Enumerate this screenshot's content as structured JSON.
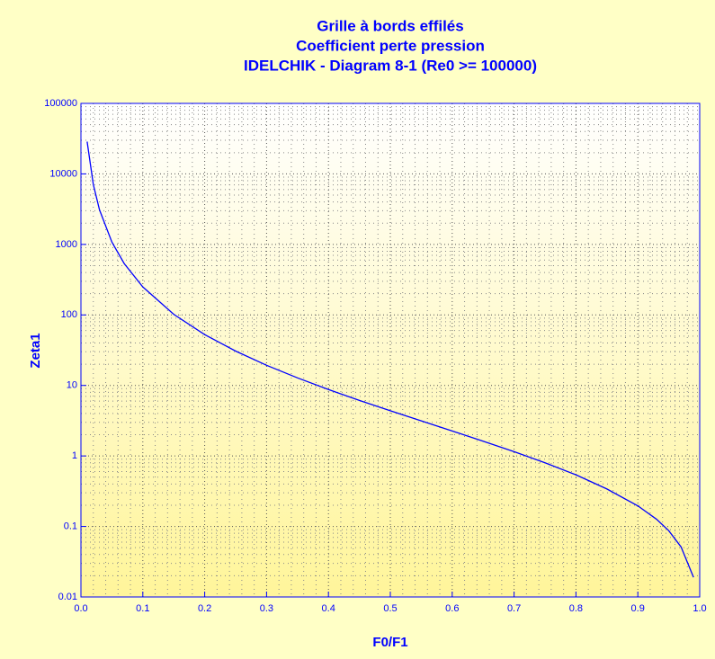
{
  "chart_data": {
    "type": "line",
    "title": [
      "Grille à bords effilés",
      "Coefficient perte pression",
      "IDELCHIK - Diagram 8-1 (Re0 >= 100000)"
    ],
    "x_label": "F0/F1",
    "y_label": "Zeta1",
    "x": [
      0.01,
      0.02,
      0.03,
      0.05,
      0.07,
      0.1,
      0.15,
      0.2,
      0.25,
      0.3,
      0.35,
      0.4,
      0.45,
      0.5,
      0.55,
      0.6,
      0.65,
      0.7,
      0.75,
      0.8,
      0.85,
      0.9,
      0.93,
      0.95,
      0.97,
      0.99
    ],
    "series": [
      {
        "name": "Zeta1",
        "color": "#0000ff",
        "values": [
          28707,
          7070,
          3095,
          1080,
          534,
          249.5,
          102,
          52.6,
          30.7,
          19.3,
          12.8,
          8.76,
          6.14,
          4.37,
          3.14,
          2.26,
          1.62,
          1.15,
          0.8,
          0.54,
          0.34,
          0.196,
          0.127,
          0.087,
          0.051,
          0.019
        ]
      }
    ],
    "xlim": [
      0,
      1
    ],
    "xticks": [
      {
        "value": 0,
        "label": "0.0"
      },
      0.1,
      0.2,
      0.3,
      0.4,
      0.5,
      0.6,
      0.7,
      0.8,
      0.9,
      {
        "value": 1,
        "label": "1.0"
      }
    ],
    "ylim": [
      0.01,
      100000
    ],
    "yticks": [
      0.01,
      0.1,
      1,
      10,
      100,
      1000,
      10000,
      100000
    ],
    "ylog": true,
    "grid": true,
    "minor_grid": true
  }
}
